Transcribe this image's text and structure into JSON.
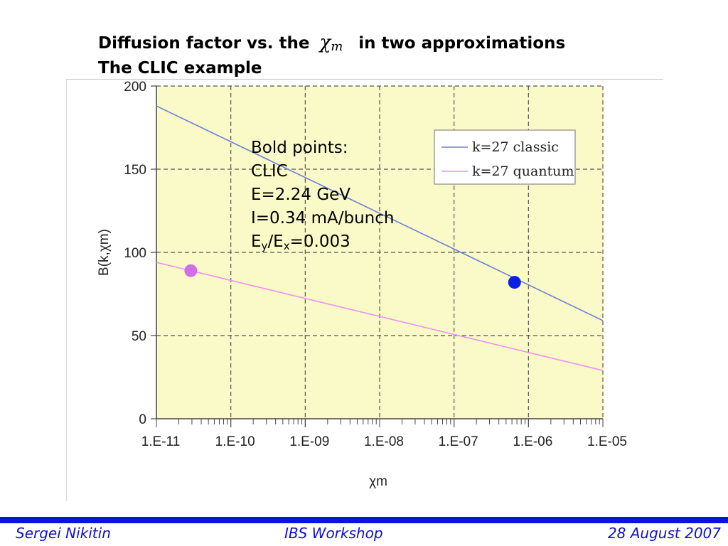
{
  "title": {
    "line1_before": "Diffusion factor vs. the",
    "chi_symbol": "χ",
    "chi_sub": "m",
    "line1_after": "in two approximations",
    "line2": "The CLIC example"
  },
  "annotation": {
    "line1": "Bold points:",
    "line2": "CLIC",
    "line3": "E=2.24 GeV",
    "line4": "I=0.34 mA/bunch",
    "line5_a": "E",
    "line5_a_sub": "y",
    "line5_b": "/E",
    "line5_b_sub": "x",
    "line5_c": "=0.003"
  },
  "footer": {
    "left": "Sergei Nikitin",
    "center": "IBS Workshop",
    "right": "28 August 2007"
  },
  "colors": {
    "plot_bg": "#fafac8",
    "classic": "#6a7fd8",
    "quantum": "#f08ef0",
    "clic_classic_point": "#0a1ee8",
    "clic_quantum_point": "#d070e8",
    "footer_bar": "#0a14e0",
    "footer_text": "#1010c8"
  },
  "chart_data": {
    "type": "line",
    "x_scale": "log",
    "xlim": [
      1e-11,
      1e-05
    ],
    "ylim": [
      0,
      200
    ],
    "xlabel": "χm",
    "ylabel": "B(k,χm)",
    "x_tick_labels": [
      "1.E-11",
      "1.E-10",
      "1.E-09",
      "1.E-08",
      "1.E-07",
      "1.E-06",
      "1.E-05"
    ],
    "y_tick_labels": [
      "0",
      "50",
      "100",
      "150",
      "200"
    ],
    "y_ticks": [
      0,
      50,
      100,
      150,
      200
    ],
    "grid": true,
    "legend_position": "top-right",
    "series": [
      {
        "name": "k=27 classic",
        "x": [
          1e-11,
          1e-05
        ],
        "y": [
          188,
          59
        ]
      },
      {
        "name": "k=27 quantum",
        "x": [
          1e-11,
          1e-05
        ],
        "y": [
          94,
          29
        ]
      }
    ],
    "points": [
      {
        "series": "k=27 quantum",
        "x": 2.9e-11,
        "y": 89
      },
      {
        "series": "k=27 classic",
        "x": 6.5e-07,
        "y": 82
      }
    ]
  }
}
